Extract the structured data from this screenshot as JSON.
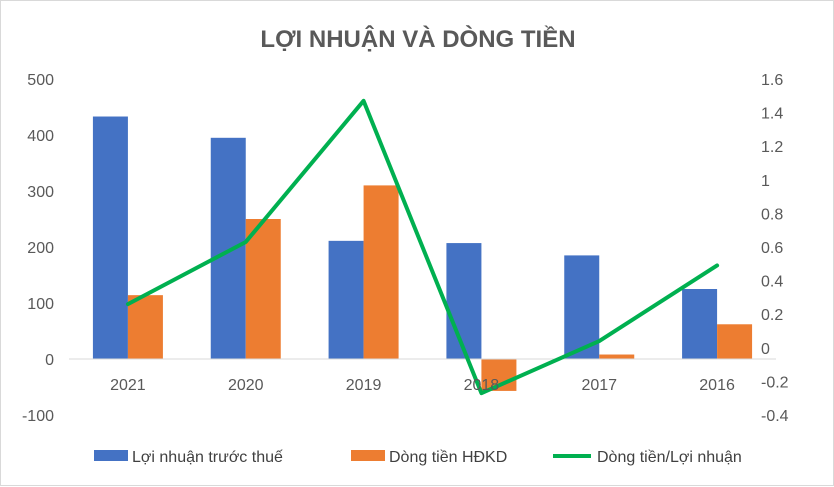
{
  "chart_data": {
    "type": "bar",
    "title": "LỢI NHUẬN VÀ DÒNG TIỀN",
    "categories": [
      "2021",
      "2020",
      "2019",
      "2018",
      "2017",
      "2016"
    ],
    "series": [
      {
        "name": "Lợi nhuận trước thuế",
        "type": "bar",
        "axis": "left",
        "color": "#4472c4",
        "values": [
          433,
          395,
          211,
          207,
          185,
          125
        ]
      },
      {
        "name": "Dòng tiền HĐKD",
        "type": "bar",
        "axis": "left",
        "color": "#ed7d31",
        "values": [
          114,
          250,
          310,
          -57,
          8,
          62
        ]
      },
      {
        "name": "Dòng tiền/Lợi nhuận",
        "type": "line",
        "axis": "right",
        "color": "#00b050",
        "values": [
          0.26,
          0.63,
          1.47,
          -0.27,
          0.04,
          0.49
        ]
      }
    ],
    "y_left": {
      "min": -100,
      "max": 500,
      "ticks": [
        "500",
        "400",
        "300",
        "200",
        "100",
        "0",
        "-100"
      ]
    },
    "y_right": {
      "min": -0.4,
      "max": 1.6,
      "ticks": [
        "1.6",
        "1.4",
        "1.2",
        "1",
        "0.8",
        "0.6",
        "0.4",
        "0.2",
        "0",
        "-0.2",
        "-0.4"
      ]
    },
    "grid": false,
    "legend": "bottom"
  }
}
